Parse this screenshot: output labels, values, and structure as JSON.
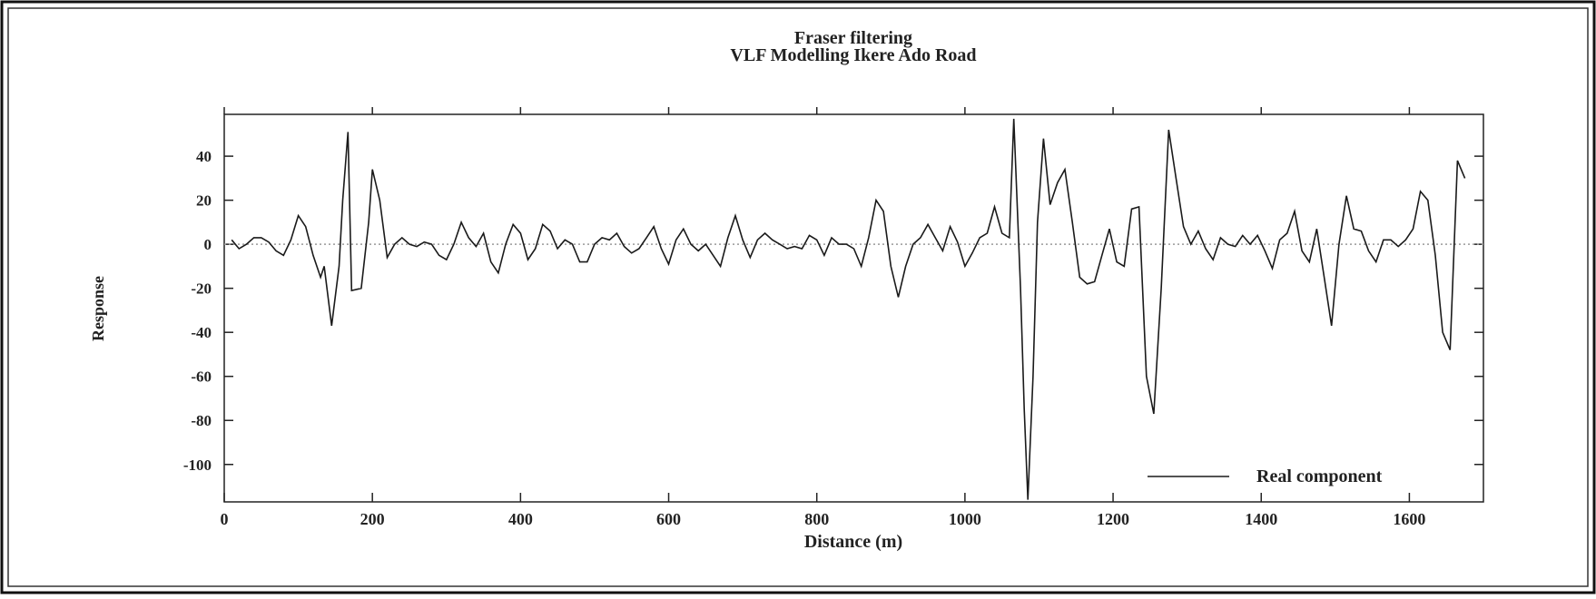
{
  "chart_data": {
    "type": "line",
    "title": "Fraser filtering",
    "subtitle": "VLF Modelling Ikere Ado Road",
    "x_label": "Distance (m)",
    "y_label": "Response",
    "xlim": [
      0,
      1700
    ],
    "ylim": [
      -117,
      59
    ],
    "xticks": [
      0,
      200,
      400,
      600,
      800,
      1000,
      1200,
      1400,
      1600
    ],
    "yticks": [
      -100,
      -80,
      -60,
      -40,
      -20,
      0,
      20,
      40
    ],
    "legend": "lower right",
    "series": [
      {
        "name": "Real component",
        "color": "#1a1a1a",
        "x": [
          10,
          20,
          30,
          40,
          50,
          60,
          70,
          80,
          90,
          100,
          110,
          120,
          130,
          135,
          145,
          155,
          160,
          167,
          172,
          185,
          195,
          200,
          210,
          220,
          230,
          240,
          250,
          260,
          270,
          280,
          290,
          300,
          310,
          320,
          330,
          340,
          350,
          360,
          370,
          380,
          390,
          400,
          410,
          420,
          430,
          440,
          450,
          460,
          470,
          480,
          490,
          500,
          510,
          520,
          530,
          540,
          550,
          560,
          570,
          580,
          590,
          600,
          610,
          620,
          630,
          640,
          650,
          660,
          670,
          680,
          690,
          700,
          710,
          720,
          730,
          740,
          750,
          760,
          770,
          780,
          790,
          800,
          810,
          820,
          830,
          840,
          850,
          860,
          870,
          880,
          890,
          900,
          910,
          920,
          930,
          940,
          950,
          960,
          970,
          980,
          990,
          1000,
          1010,
          1020,
          1030,
          1040,
          1050,
          1060,
          1066,
          1075,
          1080,
          1085,
          1092,
          1098,
          1106,
          1115,
          1125,
          1135,
          1145,
          1155,
          1165,
          1175,
          1185,
          1195,
          1205,
          1215,
          1225,
          1235,
          1245,
          1255,
          1265,
          1275,
          1285,
          1295,
          1305,
          1315,
          1325,
          1335,
          1345,
          1355,
          1365,
          1375,
          1385,
          1395,
          1405,
          1415,
          1425,
          1435,
          1445,
          1455,
          1465,
          1475,
          1485,
          1495,
          1505,
          1515,
          1525,
          1535,
          1545,
          1555,
          1565,
          1575,
          1585,
          1595,
          1605,
          1615,
          1625,
          1635,
          1645,
          1655,
          1665,
          1675
        ],
        "values": [
          2,
          -2,
          0,
          3,
          3,
          1,
          -3,
          -5,
          2,
          13,
          8,
          -5,
          -15,
          -10,
          -37,
          -10,
          20,
          51,
          -21,
          -20,
          10,
          34,
          20,
          -6,
          0,
          3,
          0,
          -1,
          1,
          0,
          -5,
          -7,
          0,
          10,
          3,
          -1,
          5,
          -8,
          -13,
          0,
          9,
          5,
          -7,
          -2,
          9,
          6,
          -2,
          2,
          0,
          -8,
          -8,
          0,
          3,
          2,
          5,
          -1,
          -4,
          -2,
          3,
          8,
          -2,
          -9,
          2,
          7,
          0,
          -3,
          0,
          -5,
          -10,
          3,
          13,
          2,
          -6,
          2,
          5,
          2,
          0,
          -2,
          -1,
          -2,
          4,
          2,
          -5,
          3,
          0,
          0,
          -2,
          -10,
          3,
          20,
          15,
          -10,
          -24,
          -10,
          0,
          3,
          9,
          3,
          -3,
          8,
          1,
          -10,
          -4,
          3,
          5,
          17,
          5,
          3,
          57,
          -20,
          -75,
          -116,
          -60,
          10,
          48,
          18,
          28,
          34,
          10,
          -15,
          -18,
          -17,
          -5,
          7,
          -8,
          -10,
          16,
          17,
          -60,
          -77,
          -20,
          52,
          30,
          8,
          0,
          6,
          -2,
          -7,
          3,
          0,
          -1,
          4,
          0,
          4,
          -3,
          -11,
          2,
          5,
          15,
          -3,
          -8,
          7,
          -15,
          -37,
          0,
          22,
          7,
          6,
          -3,
          -8,
          2,
          2,
          -1,
          2,
          7,
          24,
          20,
          -5,
          -40,
          -48,
          38,
          30
        ]
      }
    ]
  }
}
